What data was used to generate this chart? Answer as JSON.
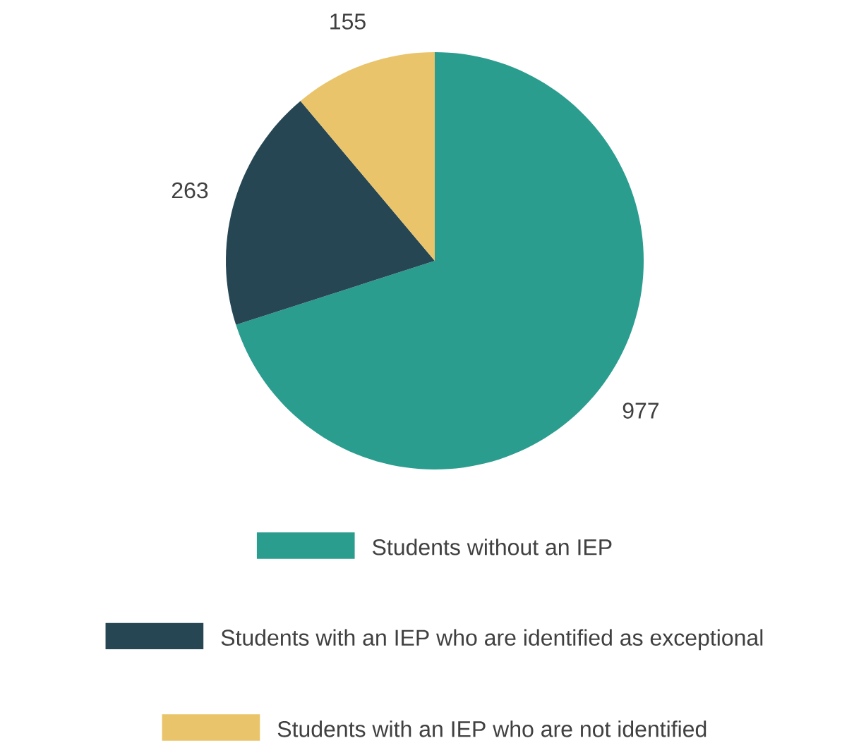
{
  "chart_data": {
    "type": "pie",
    "categories": [
      "Students without an IEP",
      "Students with an IEP who are identified as exceptional",
      "Students with an IEP who are not identified"
    ],
    "values": [
      977,
      263,
      155
    ],
    "colors": [
      "#2a9d8f",
      "#264653",
      "#e9c46a"
    ],
    "data_labels": true,
    "legend": "bottom"
  }
}
